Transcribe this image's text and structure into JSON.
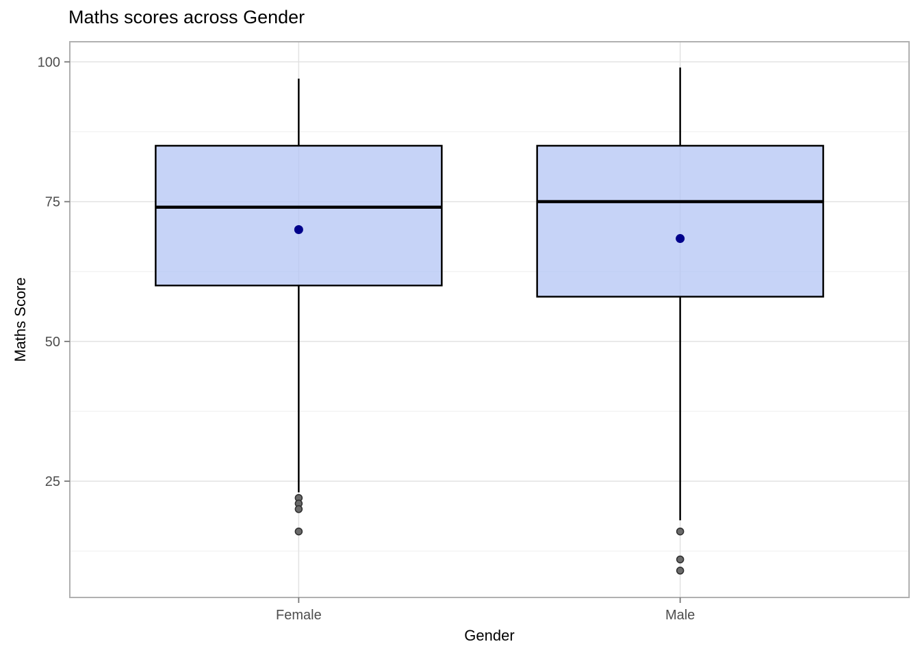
{
  "chart_data": {
    "type": "boxplot",
    "title": "Maths scores across Gender",
    "xlabel": "Gender",
    "ylabel": "Maths Score",
    "categories": [
      "Female",
      "Male"
    ],
    "y_ticks": [
      25,
      50,
      75,
      100
    ],
    "y_minor_ticks": [
      12.5,
      37.5,
      62.5,
      87.5
    ],
    "ylim": [
      4.2,
      103.6
    ],
    "grid": true,
    "legend": "none",
    "series": [
      {
        "name": "Female",
        "whisker_low": 23,
        "q1": 60,
        "median": 74,
        "q3": 85,
        "whisker_high": 97,
        "mean": 70,
        "outliers": [
          22,
          21,
          20,
          16
        ]
      },
      {
        "name": "Male",
        "whisker_low": 18,
        "q1": 58,
        "median": 75,
        "q3": 85,
        "whisker_high": 99,
        "mean": 68.4,
        "outliers": [
          16,
          11,
          9
        ]
      }
    ],
    "colors": {
      "box_fill": "rgba(179,196,244,0.75)",
      "box_stroke": "#000000",
      "median": "#000000",
      "mean_point": "#00008b",
      "outlier_fill": "#6a6a6a",
      "outlier_stroke": "#2e2e2e",
      "grid_major": "#e2e2e2",
      "grid_minor": "#f1f1f1",
      "panel_border": "#b0b0b0",
      "tick_mark": "#777777",
      "axis_text": "#4d4d4d"
    }
  }
}
